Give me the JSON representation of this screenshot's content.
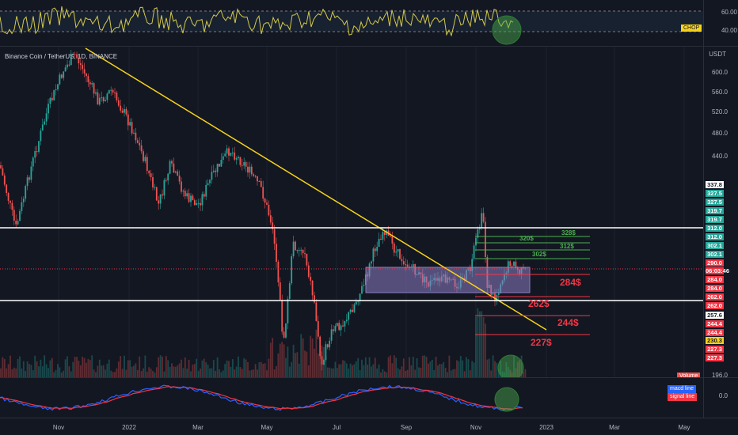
{
  "symbol_title": "Binance Coin / TetherUS, 1D, BINANCE",
  "currency": "USDT",
  "indicators": {
    "chop_label": "CHOP",
    "chop_ticks": [
      "60.00",
      "40.00"
    ],
    "volume_label": "Volume",
    "macd_line_label": "macd line",
    "signal_line_label": "signal line",
    "macd_tick": "0.0"
  },
  "price_ticks": [
    "600.0",
    "560.0",
    "520.0",
    "480.0",
    "440.0",
    "196.0"
  ],
  "price_badges": [
    {
      "text": "337.8",
      "color": "#ffffff",
      "fg": "#131722"
    },
    {
      "text": "327.5",
      "color": "#26a69a",
      "fg": "#ffffff"
    },
    {
      "text": "327.5",
      "color": "#26a69a",
      "fg": "#ffffff"
    },
    {
      "text": "319.7",
      "color": "#26a69a",
      "fg": "#ffffff"
    },
    {
      "text": "319.7",
      "color": "#26a69a",
      "fg": "#ffffff"
    },
    {
      "text": "312.0",
      "color": "#26a69a",
      "fg": "#ffffff"
    },
    {
      "text": "312.0",
      "color": "#26a69a",
      "fg": "#ffffff"
    },
    {
      "text": "302.1",
      "color": "#26a69a",
      "fg": "#ffffff"
    },
    {
      "text": "302.1",
      "color": "#26a69a",
      "fg": "#ffffff"
    },
    {
      "text": "290.0",
      "color": "#f23645",
      "fg": "#ffffff"
    },
    {
      "text": "06:03:46",
      "color": "#f23645",
      "fg": "#ffffff"
    },
    {
      "text": "284.0",
      "color": "#f23645",
      "fg": "#ffffff"
    },
    {
      "text": "284.0",
      "color": "#f23645",
      "fg": "#ffffff"
    },
    {
      "text": "262.0",
      "color": "#f23645",
      "fg": "#ffffff"
    },
    {
      "text": "262.0",
      "color": "#f23645",
      "fg": "#ffffff"
    },
    {
      "text": "257.6",
      "color": "#ffffff",
      "fg": "#131722"
    },
    {
      "text": "244.4",
      "color": "#f23645",
      "fg": "#ffffff"
    },
    {
      "text": "244.4",
      "color": "#f23645",
      "fg": "#ffffff"
    },
    {
      "text": "230.3",
      "color": "#f7d21b",
      "fg": "#131722"
    },
    {
      "text": "227.3",
      "color": "#f23645",
      "fg": "#ffffff"
    },
    {
      "text": "227.3",
      "color": "#f23645",
      "fg": "#ffffff"
    }
  ],
  "targets_up": [
    "328$",
    "320$",
    "312$",
    "302$"
  ],
  "targets_down": [
    "284$",
    "262$",
    "244$",
    "227$"
  ],
  "x_labels": [
    "Nov",
    "2022",
    "Mar",
    "May",
    "Jul",
    "Sep",
    "Nov",
    "2023",
    "Mar",
    "May"
  ],
  "colors": {
    "up": "#26a69a",
    "down": "#ef5350",
    "trendline": "#f7d21b",
    "support": "#ffffff",
    "box": "#8e7cc3",
    "macd": "#2962ff",
    "signal": "#f23645",
    "highlight": "#4caf50"
  }
}
